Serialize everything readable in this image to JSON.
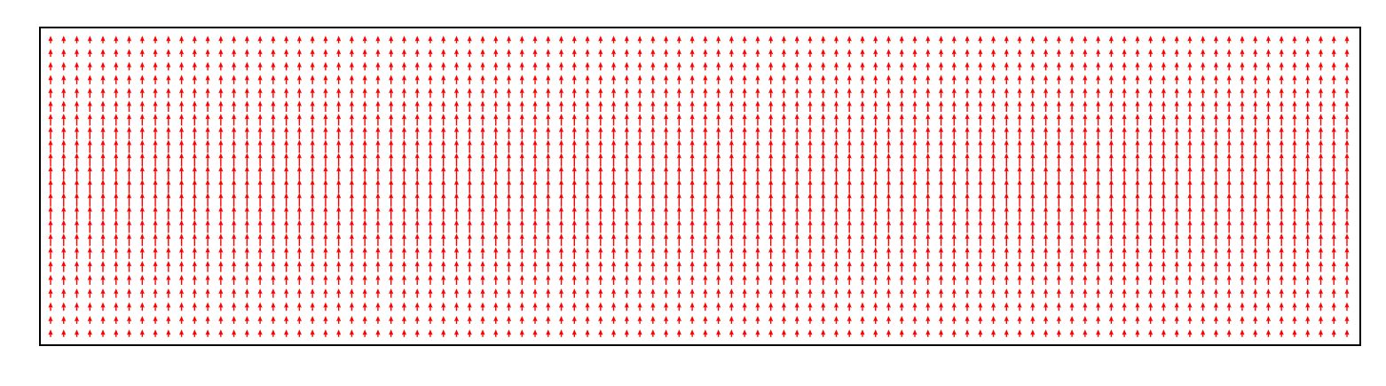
{
  "chart_data": {
    "type": "quiver",
    "title": "",
    "xlabel": "",
    "ylabel": "",
    "axis_ticks": "none",
    "grid": false,
    "legend": "none",
    "arrow_color": "#ff0000",
    "frame_color": "#000000",
    "background": "#ffffff",
    "columns": 100,
    "rows": 23,
    "direction": "up",
    "u": 0,
    "v": 1,
    "row_magnitudes": [
      0.55,
      0.58,
      0.62,
      0.68,
      0.74,
      0.8,
      0.86,
      0.91,
      0.95,
      0.98,
      1.0,
      1.0,
      1.0,
      0.98,
      0.95,
      0.91,
      0.86,
      0.8,
      0.74,
      0.68,
      0.62,
      0.58,
      0.55
    ]
  }
}
